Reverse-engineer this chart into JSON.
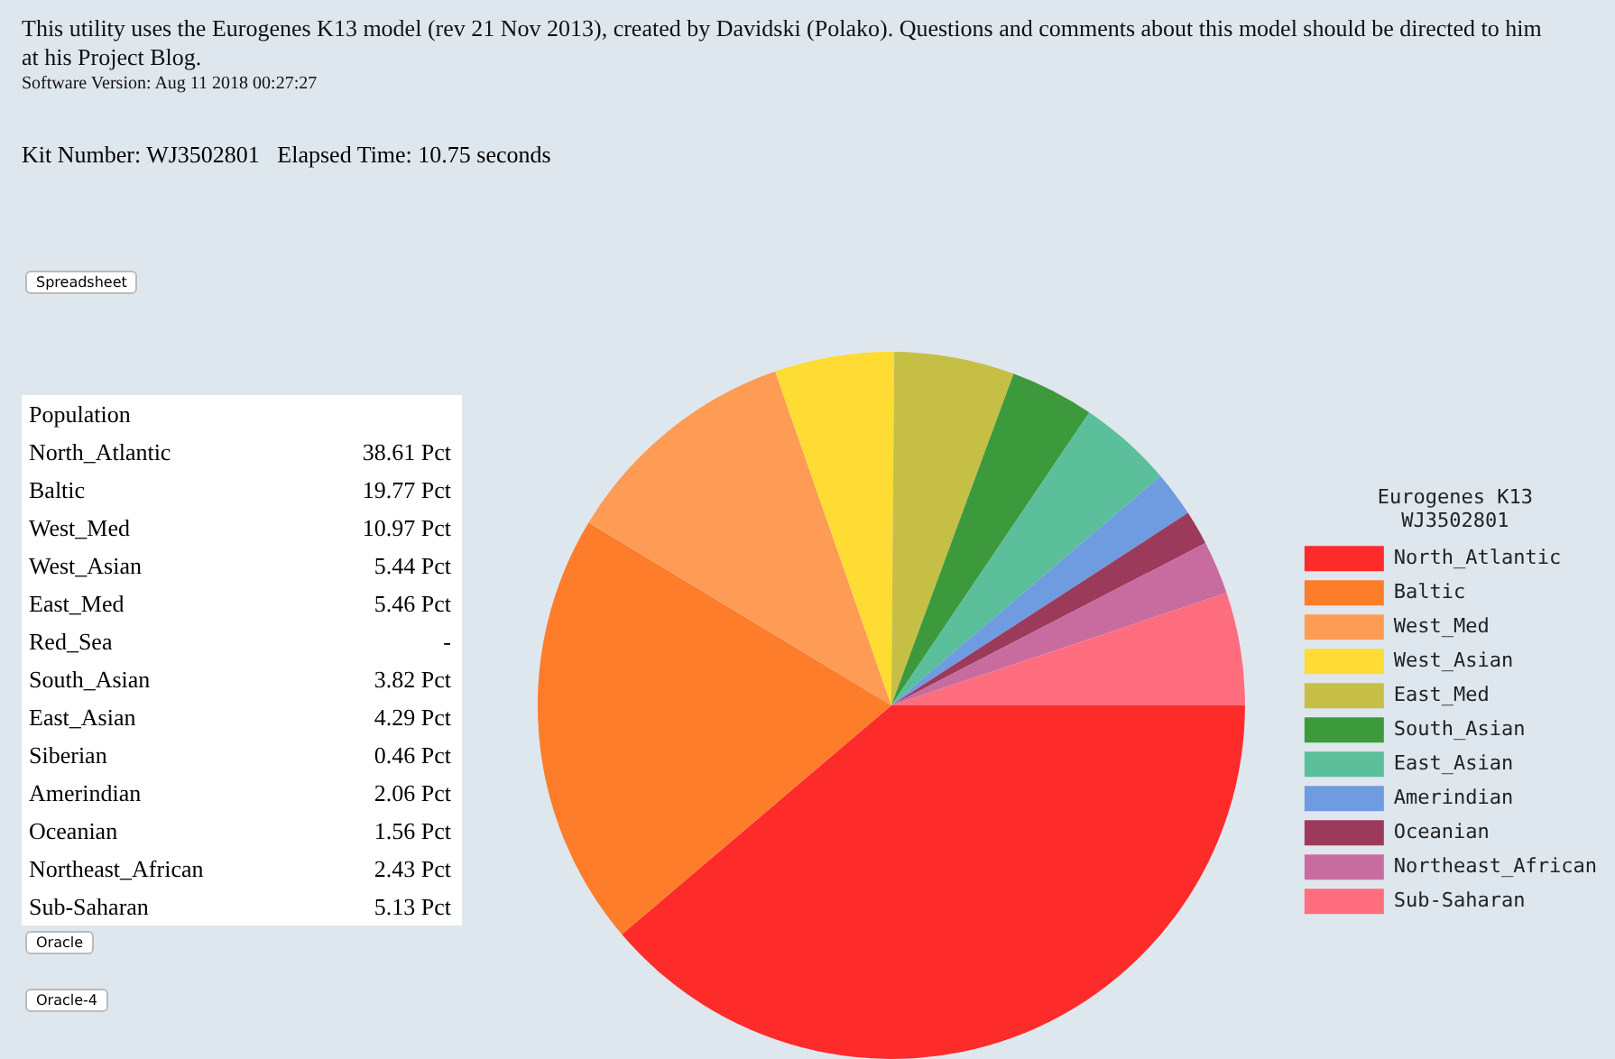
{
  "chart_data": {
    "type": "pie",
    "title": "This utility uses the Eurogenes K13 model (rev 21 Nov 2013), created by Davidski (Polako). Questions and comments about this model should be directed to him at his Project Blog.",
    "subtitle": "Software Version: Aug 11 2018 00:27:27",
    "annotations": [
      "Kit Number: WJ3502801   Elapsed Time: 10.75 seconds",
      "Spreadsheet",
      "Oracle",
      "Oracle-4",
      "Population",
      "North_Atlantic 38.61 Pct",
      "Baltic 19.77 Pct",
      "West_Med 10.97 Pct",
      "West_Asian 5.44 Pct",
      "East_Med 5.46 Pct",
      "Red_Sea -",
      "South_Asian 3.82 Pct",
      "East_Asian 4.29 Pct",
      "Siberian 0.46 Pct",
      "Amerindian 2.06 Pct",
      "Oceanian 1.56 Pct",
      "Northeast_African 2.43 Pct",
      "Sub-Saharan 5.13 Pct"
    ],
    "legend_title": "Eurogenes K13\nWJ3502801",
    "legend": "right",
    "categories": [
      "North_Atlantic",
      "Baltic",
      "West_Med",
      "West_Asian",
      "East_Med",
      "South_Asian",
      "East_Asian",
      "Amerindian",
      "Oceanian",
      "Northeast_African",
      "Sub-Saharan"
    ],
    "values": [
      38.61,
      19.77,
      10.97,
      5.44,
      5.46,
      3.82,
      4.29,
      2.06,
      1.56,
      2.43,
      5.13
    ],
    "colors": [
      "#fe2b2b",
      "#fe7d2b",
      "#fe9b55",
      "#fedc33",
      "#c6bf45",
      "#3c9a3c",
      "#5cbf9c",
      "#6f9ce0",
      "#9c3a5c",
      "#c86ca0",
      "#fe6e7e"
    ]
  }
}
